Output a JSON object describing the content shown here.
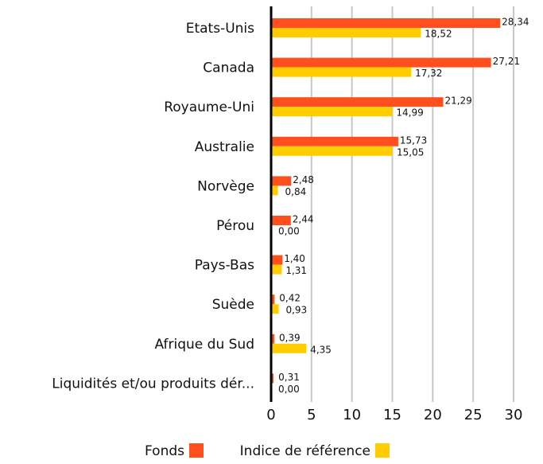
{
  "chart_data": {
    "type": "bar",
    "orientation": "horizontal",
    "categories": [
      "Etats-Unis",
      "Canada",
      "Royaume-Uni",
      "Australie",
      "Norvège",
      "Pérou",
      "Pays-Bas",
      "Suède",
      "Afrique du Sud",
      "Liquidités et/ou produits dér..."
    ],
    "series": [
      {
        "name": "Fonds",
        "color": "#ff4f1f",
        "values": [
          28.34,
          27.21,
          21.29,
          15.73,
          2.48,
          2.44,
          1.4,
          0.42,
          0.39,
          0.31
        ],
        "value_labels": [
          "28,34",
          "27,21",
          "21,29",
          "15,73",
          "2,48",
          "2,44",
          "1,40",
          "0,42",
          "0,39",
          "0,31"
        ]
      },
      {
        "name": "Indice de référence",
        "color": "#ffcd00",
        "values": [
          18.52,
          17.32,
          14.99,
          15.05,
          0.84,
          0.0,
          1.31,
          0.93,
          4.35,
          0.0
        ],
        "value_labels": [
          "18,52",
          "17,32",
          "14,99",
          "15,05",
          "0,84",
          "0,00",
          "1,31",
          "0,93",
          "4,35",
          "0,00"
        ]
      }
    ],
    "xlim": [
      0,
      30
    ],
    "xticks": [
      0,
      5,
      10,
      15,
      20,
      25,
      30
    ],
    "grid": true,
    "legend": "bottom"
  }
}
